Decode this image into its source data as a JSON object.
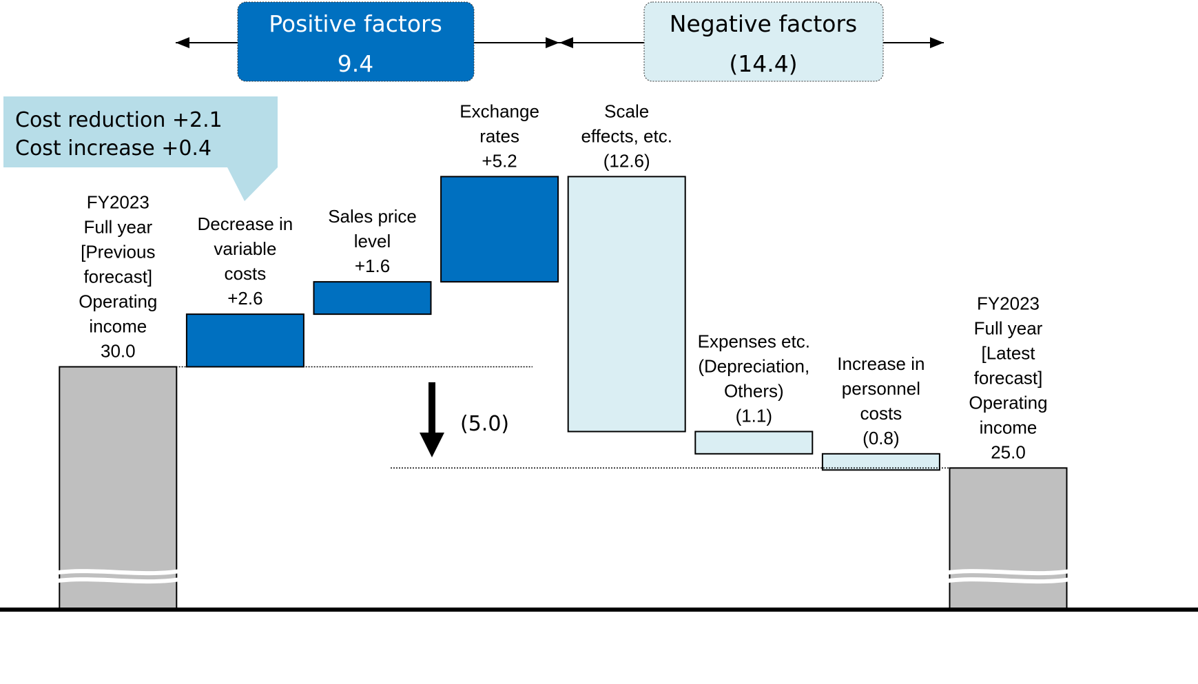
{
  "chart_data": {
    "type": "waterfall",
    "categories": [
      [
        "FY2023",
        "Full year",
        "[Previous",
        "forecast]",
        "Operating",
        "income"
      ],
      [
        "Decrease in",
        "variable",
        "costs"
      ],
      [
        "Sales price",
        "level"
      ],
      [
        "Exchange",
        "rates"
      ],
      [
        "Scale",
        "effects, etc."
      ],
      [
        "Expenses etc.",
        "(Depreciation,",
        "Others)"
      ],
      [
        "Increase in",
        "personnel",
        "costs"
      ],
      [
        "FY2023",
        "Full year",
        "[Latest",
        "forecast]",
        "Operating",
        "income"
      ]
    ],
    "values": [
      30.0,
      2.6,
      1.6,
      5.2,
      -12.6,
      -1.1,
      -0.8,
      25.0
    ],
    "value_labels": [
      "30.0",
      "+2.6",
      "+1.6",
      "+5.2",
      "(12.6)",
      "(1.1)",
      "(0.8)",
      "25.0"
    ],
    "kinds": [
      "total",
      "change",
      "change",
      "change",
      "change",
      "change",
      "change",
      "total"
    ],
    "colors": {
      "total": "#bfbfbf",
      "positive": "#0070c0",
      "negative": "#daeef3"
    },
    "ylim": [
      18,
      42
    ],
    "annotations": {
      "positive": {
        "title": "Positive factors",
        "value": "9.4"
      },
      "negative": {
        "title": "Negative factors",
        "value": "(14.4)"
      },
      "callout": [
        "Cost reduction +2.1",
        "Cost increase +0.4"
      ],
      "difference": "(5.0)"
    }
  }
}
